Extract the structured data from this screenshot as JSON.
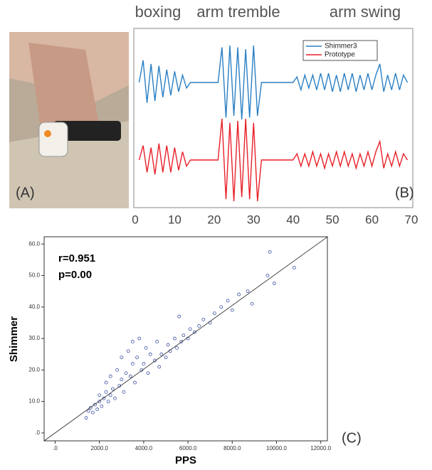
{
  "photo": {
    "label": "(A)"
  },
  "chart_data": [
    {
      "type": "line",
      "annotations": [
        "boxing",
        "arm tremble",
        "arm swing"
      ],
      "panel_label": "(B)",
      "xlim": [
        0,
        70
      ],
      "xticks": [
        0,
        10,
        20,
        30,
        40,
        50,
        60,
        70
      ],
      "ylim": [
        -1,
        1
      ],
      "legend": "upper right",
      "x": [
        1,
        2,
        3,
        4,
        5,
        6,
        7,
        8,
        9,
        10,
        11,
        12,
        13,
        14,
        15,
        16,
        17,
        18,
        19,
        20,
        21,
        22,
        23,
        24,
        25,
        26,
        27,
        28,
        29,
        30,
        31,
        32,
        33,
        34,
        35,
        36,
        37,
        38,
        39,
        40,
        41,
        42,
        43,
        44,
        45,
        46,
        47,
        48,
        49,
        50,
        51,
        52,
        53,
        54,
        55,
        56,
        57,
        58,
        59,
        60,
        61,
        62,
        63,
        64,
        65,
        66,
        67,
        68,
        69
      ],
      "series": [
        {
          "name": "Shimmer3",
          "color": "#2a7fc4",
          "values": [
            0,
            0.6,
            -0.55,
            0.5,
            -0.5,
            0.45,
            -0.4,
            0.35,
            -0.35,
            0.3,
            -0.25,
            0.2,
            -0.15,
            0,
            0,
            0,
            0,
            0,
            0,
            0,
            0,
            0.95,
            -0.95,
            1,
            -0.9,
            0.95,
            -1,
            0.9,
            -0.95,
            1,
            -0.9,
            0,
            0,
            0,
            0,
            0,
            0,
            0,
            0,
            0,
            0.15,
            -0.2,
            0.2,
            -0.15,
            0.2,
            -0.2,
            0.25,
            -0.2,
            0.25,
            -0.25,
            0.2,
            -0.25,
            0.25,
            -0.2,
            0.25,
            -0.25,
            0.2,
            -0.2,
            0.25,
            -0.2,
            0.2,
            0.5,
            -0.25,
            0.2,
            -0.2,
            0.25,
            -0.2,
            0.2,
            0
          ]
        },
        {
          "name": "Prototype",
          "color": "#e8202a",
          "values": [
            0,
            0.35,
            -0.3,
            0.3,
            -0.35,
            0.4,
            -0.3,
            0.35,
            -0.3,
            0.3,
            -0.25,
            0.2,
            -0.15,
            0,
            0,
            0,
            0,
            0,
            0,
            0,
            0,
            1,
            -0.95,
            0.9,
            -1,
            0.95,
            -0.9,
            1,
            -0.95,
            0.9,
            -1,
            0,
            0,
            0,
            0,
            0,
            0,
            0,
            0,
            0,
            0.15,
            -0.15,
            0.15,
            -0.15,
            0.2,
            -0.15,
            0.15,
            -0.2,
            0.15,
            -0.15,
            0.2,
            -0.15,
            0.2,
            -0.15,
            0.15,
            -0.2,
            0.15,
            -0.15,
            0.2,
            -0.15,
            0.2,
            0.45,
            -0.2,
            0.15,
            -0.15,
            0.2,
            -0.15,
            0.15,
            0
          ]
        }
      ]
    },
    {
      "type": "scatter",
      "xlabel": "PPS",
      "ylabel": "Shimmer",
      "annotations": [
        "r=0.951",
        "p=0.00"
      ],
      "panel_label": "(C)",
      "color": "#3b4fa0",
      "xlim": [
        -500,
        12300
      ],
      "ylim": [
        -2.5,
        62.3
      ],
      "xticks": [
        {
          "value": 0,
          "label": ".0"
        },
        {
          "value": 2000,
          "label": "2000.0"
        },
        {
          "value": 4000,
          "label": "4000.0"
        },
        {
          "value": 6000,
          "label": "6000.0"
        },
        {
          "value": 8000,
          "label": "8000.0"
        },
        {
          "value": 10000,
          "label": "10000.0"
        },
        {
          "value": 12000,
          "label": "12000.0"
        }
      ],
      "yticks": [
        {
          "value": 0,
          "label": ".0"
        },
        {
          "value": 10,
          "label": "10.0"
        },
        {
          "value": 20,
          "label": "20.0"
        },
        {
          "value": 30,
          "label": "30.0"
        },
        {
          "value": 40,
          "label": "40.0"
        },
        {
          "value": 50,
          "label": "50.0"
        },
        {
          "value": 60,
          "label": "60.0"
        }
      ],
      "fit_line": {
        "slope": 0.00506,
        "intercept": 0.03
      },
      "x": [
        1400,
        1500,
        1600,
        1700,
        1800,
        1900,
        2000,
        2000,
        2100,
        2200,
        2300,
        2300,
        2400,
        2500,
        2500,
        2600,
        2700,
        2800,
        2900,
        3000,
        3000,
        3100,
        3200,
        3300,
        3400,
        3500,
        3500,
        3600,
        3700,
        3800,
        3900,
        4000,
        4100,
        4200,
        4300,
        4500,
        4600,
        4700,
        4800,
        5000,
        5100,
        5200,
        5400,
        5500,
        5600,
        5700,
        5800,
        6000,
        6100,
        6300,
        6500,
        6700,
        7000,
        7200,
        7500,
        7800,
        8000,
        8300,
        8700,
        8900,
        9600,
        9700,
        9900,
        10800
      ],
      "y": [
        4.8,
        7,
        8,
        6.5,
        9,
        7.5,
        10,
        12,
        8.5,
        11,
        13,
        16,
        10,
        12,
        18,
        14,
        11,
        20,
        15,
        17,
        24,
        13,
        19,
        26,
        18,
        22,
        29,
        16,
        24,
        30,
        20,
        22,
        27,
        19,
        25,
        23,
        29,
        21,
        25,
        24,
        28,
        26,
        30,
        27,
        37,
        29,
        31,
        30,
        33,
        32,
        34,
        36,
        35,
        38,
        40,
        42,
        39,
        44,
        45,
        41,
        50,
        57.5,
        47.5,
        52.5
      ]
    }
  ]
}
